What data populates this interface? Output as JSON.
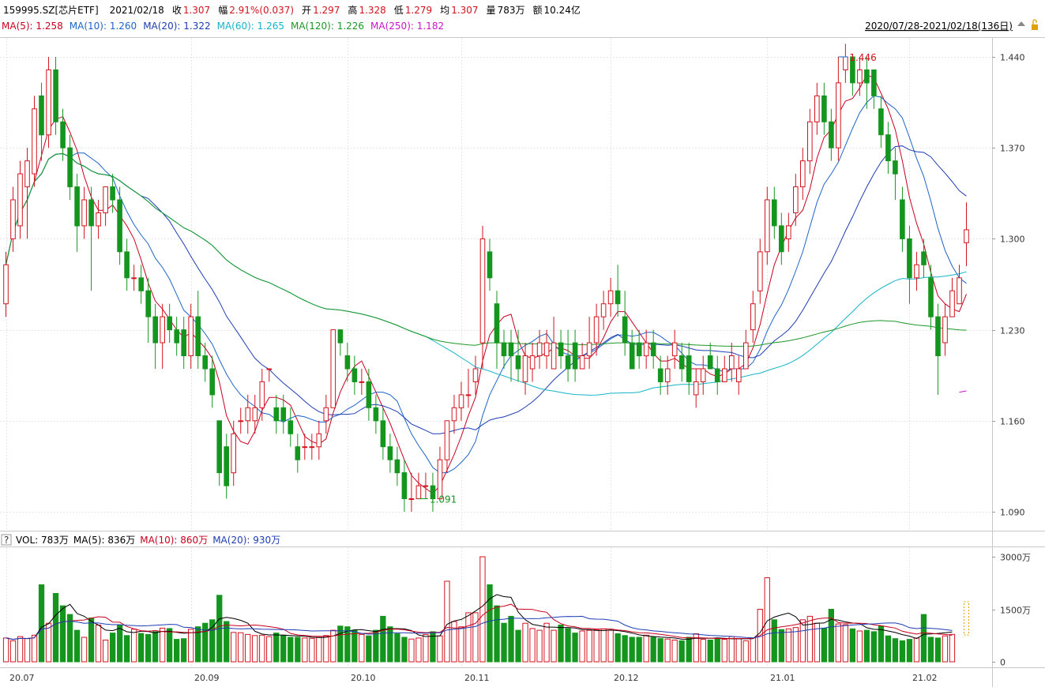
{
  "header": {
    "code": "159995.SZ[芯片ETF]",
    "date": "2021/02/18",
    "close_label": "收",
    "close": "1.307",
    "change_label": "幅",
    "change": "2.91%(0.037)",
    "open_label": "开",
    "open": "1.297",
    "high_label": "高",
    "high": "1.328",
    "low_label": "低",
    "low": "1.279",
    "avg_label": "均",
    "avg": "1.307",
    "vol_label": "量",
    "vol": "783万",
    "amount_label": "额",
    "amount": "10.24亿",
    "range": "2020/07/28-2021/02/18(136日)"
  },
  "ma_legend": [
    {
      "text": "MA(5): 1.258",
      "color": "#c8001e"
    },
    {
      "text": "MA(10): 1.260",
      "color": "#1e64c8"
    },
    {
      "text": "MA(20): 1.322",
      "color": "#1e3cb4"
    },
    {
      "text": "MA(60): 1.265",
      "color": "#14b4c8"
    },
    {
      "text": "MA(120): 1.226",
      "color": "#1e9628"
    },
    {
      "text": "MA(250): 1.182",
      "color": "#c814c8"
    }
  ],
  "vol_legend": [
    {
      "text": "VOL: 783万",
      "color": "#000000"
    },
    {
      "text": "MA(5): 836万",
      "color": "#000000"
    },
    {
      "text": "MA(10): 860万",
      "color": "#c8001e"
    },
    {
      "text": "MA(20): 930万",
      "color": "#1e3cb4"
    }
  ],
  "vol_help_icon": "?",
  "colors": {
    "up": "#d2141e",
    "down": "#14961e"
  },
  "chart_data": {
    "type": "candlestick",
    "ylim": [
      1.08,
      1.455
    ],
    "y_ticks": [
      1.09,
      1.16,
      1.23,
      1.3,
      1.37,
      1.44
    ],
    "y_tick_labels": [
      "1.090",
      "1.160",
      "1.230",
      "1.300",
      "1.370",
      "1.440"
    ],
    "x_tick_labels": [
      {
        "label": "20.07",
        "idx": 0
      },
      {
        "label": "20.09",
        "idx": 26
      },
      {
        "label": "20.10",
        "idx": 48
      },
      {
        "label": "20.11",
        "idx": 64
      },
      {
        "label": "20.12",
        "idx": 85
      },
      {
        "label": "21.01",
        "idx": 107
      },
      {
        "label": "21.02",
        "idx": 127
      }
    ],
    "annotations": [
      {
        "text": "1.446",
        "type": "high",
        "idx": 117
      },
      {
        "text": "1.091",
        "type": "low",
        "idx": 58
      }
    ],
    "candles": [
      [
        1.25,
        1.28,
        1.24,
        1.29
      ],
      [
        1.3,
        1.33,
        1.29,
        1.34
      ],
      [
        1.31,
        1.35,
        1.3,
        1.36
      ],
      [
        1.34,
        1.36,
        1.3,
        1.37
      ],
      [
        1.35,
        1.4,
        1.34,
        1.41
      ],
      [
        1.41,
        1.38,
        1.36,
        1.42
      ],
      [
        1.38,
        1.43,
        1.37,
        1.44
      ],
      [
        1.43,
        1.39,
        1.38,
        1.44
      ],
      [
        1.39,
        1.37,
        1.36,
        1.4
      ],
      [
        1.37,
        1.34,
        1.33,
        1.38
      ],
      [
        1.34,
        1.31,
        1.29,
        1.35
      ],
      [
        1.31,
        1.33,
        1.3,
        1.34
      ],
      [
        1.33,
        1.31,
        1.26,
        1.34
      ],
      [
        1.31,
        1.32,
        1.3,
        1.33
      ],
      [
        1.32,
        1.34,
        1.31,
        1.34
      ],
      [
        1.34,
        1.33,
        1.32,
        1.35
      ],
      [
        1.33,
        1.29,
        1.28,
        1.34
      ],
      [
        1.29,
        1.27,
        1.26,
        1.3
      ],
      [
        1.27,
        1.27,
        1.26,
        1.28
      ],
      [
        1.27,
        1.26,
        1.25,
        1.28
      ],
      [
        1.26,
        1.24,
        1.22,
        1.27
      ],
      [
        1.24,
        1.22,
        1.2,
        1.25
      ],
      [
        1.22,
        1.24,
        1.2,
        1.25
      ],
      [
        1.24,
        1.23,
        1.22,
        1.25
      ],
      [
        1.23,
        1.22,
        1.21,
        1.24
      ],
      [
        1.23,
        1.21,
        1.2,
        1.24
      ],
      [
        1.21,
        1.24,
        1.2,
        1.25
      ],
      [
        1.24,
        1.21,
        1.2,
        1.26
      ],
      [
        1.21,
        1.2,
        1.19,
        1.22
      ],
      [
        1.2,
        1.18,
        1.17,
        1.21
      ],
      [
        1.16,
        1.12,
        1.11,
        1.16
      ],
      [
        1.14,
        1.11,
        1.1,
        1.15
      ],
      [
        1.12,
        1.15,
        1.11,
        1.16
      ],
      [
        1.16,
        1.16,
        1.15,
        1.17
      ],
      [
        1.16,
        1.17,
        1.15,
        1.18
      ],
      [
        1.16,
        1.17,
        1.15,
        1.18
      ],
      [
        1.17,
        1.19,
        1.16,
        1.2
      ],
      [
        1.2,
        1.2,
        1.19,
        1.2
      ],
      [
        1.17,
        1.16,
        1.15,
        1.18
      ],
      [
        1.17,
        1.16,
        1.15,
        1.18
      ],
      [
        1.16,
        1.15,
        1.14,
        1.17
      ],
      [
        1.14,
        1.13,
        1.12,
        1.15
      ],
      [
        1.14,
        1.14,
        1.13,
        1.15
      ],
      [
        1.14,
        1.14,
        1.13,
        1.15
      ],
      [
        1.14,
        1.15,
        1.13,
        1.16
      ],
      [
        1.16,
        1.17,
        1.15,
        1.18
      ],
      [
        1.17,
        1.23,
        1.17,
        1.23
      ],
      [
        1.23,
        1.22,
        1.21,
        1.23
      ],
      [
        1.21,
        1.2,
        1.19,
        1.22
      ],
      [
        1.2,
        1.19,
        1.18,
        1.21
      ],
      [
        1.19,
        1.19,
        1.18,
        1.2
      ],
      [
        1.19,
        1.17,
        1.16,
        1.2
      ],
      [
        1.17,
        1.16,
        1.15,
        1.18
      ],
      [
        1.16,
        1.14,
        1.13,
        1.17
      ],
      [
        1.14,
        1.13,
        1.12,
        1.15
      ],
      [
        1.13,
        1.12,
        1.11,
        1.14
      ],
      [
        1.12,
        1.1,
        1.09,
        1.13
      ],
      [
        1.1,
        1.1,
        1.09,
        1.12
      ],
      [
        1.1,
        1.11,
        1.1,
        1.12
      ],
      [
        1.11,
        1.11,
        1.1,
        1.12
      ],
      [
        1.11,
        1.1,
        1.09,
        1.12
      ],
      [
        1.1,
        1.13,
        1.1,
        1.14
      ],
      [
        1.13,
        1.16,
        1.12,
        1.16
      ],
      [
        1.16,
        1.17,
        1.15,
        1.18
      ],
      [
        1.17,
        1.18,
        1.16,
        1.19
      ],
      [
        1.18,
        1.18,
        1.17,
        1.2
      ],
      [
        1.19,
        1.2,
        1.18,
        1.21
      ],
      [
        1.22,
        1.3,
        1.2,
        1.31
      ],
      [
        1.29,
        1.27,
        1.26,
        1.3
      ],
      [
        1.25,
        1.22,
        1.2,
        1.26
      ],
      [
        1.22,
        1.21,
        1.2,
        1.23
      ],
      [
        1.22,
        1.21,
        1.19,
        1.23
      ],
      [
        1.21,
        1.2,
        1.19,
        1.23
      ],
      [
        1.19,
        1.21,
        1.18,
        1.22
      ],
      [
        1.2,
        1.21,
        1.19,
        1.22
      ],
      [
        1.21,
        1.22,
        1.2,
        1.23
      ],
      [
        1.21,
        1.22,
        1.2,
        1.23
      ],
      [
        1.2,
        1.22,
        1.2,
        1.24
      ],
      [
        1.22,
        1.21,
        1.2,
        1.23
      ],
      [
        1.21,
        1.2,
        1.19,
        1.23
      ],
      [
        1.22,
        1.2,
        1.19,
        1.23
      ],
      [
        1.2,
        1.21,
        1.2,
        1.22
      ],
      [
        1.21,
        1.22,
        1.2,
        1.24
      ],
      [
        1.22,
        1.24,
        1.21,
        1.25
      ],
      [
        1.24,
        1.25,
        1.23,
        1.26
      ],
      [
        1.25,
        1.26,
        1.24,
        1.27
      ],
      [
        1.26,
        1.25,
        1.24,
        1.28
      ],
      [
        1.24,
        1.22,
        1.21,
        1.26
      ],
      [
        1.22,
        1.2,
        1.2,
        1.23
      ],
      [
        1.22,
        1.21,
        1.2,
        1.23
      ],
      [
        1.21,
        1.22,
        1.2,
        1.23
      ],
      [
        1.22,
        1.21,
        1.2,
        1.23
      ],
      [
        1.2,
        1.19,
        1.18,
        1.21
      ],
      [
        1.19,
        1.2,
        1.18,
        1.21
      ],
      [
        1.21,
        1.22,
        1.2,
        1.23
      ],
      [
        1.21,
        1.2,
        1.19,
        1.22
      ],
      [
        1.21,
        1.19,
        1.18,
        1.22
      ],
      [
        1.18,
        1.19,
        1.17,
        1.2
      ],
      [
        1.19,
        1.2,
        1.18,
        1.21
      ],
      [
        1.21,
        1.2,
        1.2,
        1.22
      ],
      [
        1.2,
        1.19,
        1.18,
        1.21
      ],
      [
        1.19,
        1.2,
        1.19,
        1.21
      ],
      [
        1.2,
        1.21,
        1.19,
        1.22
      ],
      [
        1.19,
        1.2,
        1.18,
        1.21
      ],
      [
        1.2,
        1.22,
        1.2,
        1.23
      ],
      [
        1.23,
        1.25,
        1.22,
        1.26
      ],
      [
        1.26,
        1.29,
        1.25,
        1.3
      ],
      [
        1.29,
        1.33,
        1.28,
        1.34
      ],
      [
        1.33,
        1.31,
        1.3,
        1.34
      ],
      [
        1.31,
        1.29,
        1.28,
        1.32
      ],
      [
        1.3,
        1.31,
        1.29,
        1.32
      ],
      [
        1.32,
        1.34,
        1.31,
        1.35
      ],
      [
        1.34,
        1.36,
        1.33,
        1.37
      ],
      [
        1.36,
        1.39,
        1.35,
        1.4
      ],
      [
        1.39,
        1.41,
        1.38,
        1.42
      ],
      [
        1.41,
        1.39,
        1.38,
        1.42
      ],
      [
        1.39,
        1.37,
        1.36,
        1.4
      ],
      [
        1.37,
        1.42,
        1.36,
        1.44
      ],
      [
        1.43,
        1.44,
        1.42,
        1.45
      ],
      [
        1.44,
        1.42,
        1.41,
        1.44
      ],
      [
        1.42,
        1.43,
        1.41,
        1.44
      ],
      [
        1.43,
        1.42,
        1.4,
        1.44
      ],
      [
        1.43,
        1.41,
        1.4,
        1.43
      ],
      [
        1.4,
        1.38,
        1.37,
        1.41
      ],
      [
        1.38,
        1.36,
        1.35,
        1.39
      ],
      [
        1.36,
        1.35,
        1.33,
        1.37
      ],
      [
        1.33,
        1.3,
        1.29,
        1.34
      ],
      [
        1.3,
        1.27,
        1.25,
        1.31
      ],
      [
        1.27,
        1.28,
        1.26,
        1.29
      ],
      [
        1.29,
        1.28,
        1.27,
        1.3
      ],
      [
        1.27,
        1.24,
        1.23,
        1.28
      ],
      [
        1.24,
        1.21,
        1.18,
        1.25
      ],
      [
        1.22,
        1.24,
        1.21,
        1.25
      ],
      [
        1.24,
        1.26,
        1.24,
        1.27
      ],
      [
        1.25,
        1.27,
        1.25,
        1.28
      ],
      [
        1.297,
        1.307,
        1.279,
        1.328
      ]
    ],
    "volumes": [
      680,
      600,
      720,
      660,
      760,
      2200,
      1100,
      1950,
      1600,
      1350,
      900,
      700,
      1250,
      1050,
      620,
      820,
      1050,
      750,
      930,
      810,
      780,
      860,
      960,
      950,
      640,
      660,
      930,
      1000,
      1100,
      1200,
      1900,
      1150,
      840,
      830,
      780,
      750,
      760,
      720,
      820,
      760,
      700,
      700,
      680,
      670,
      700,
      750,
      900,
      1020,
      1000,
      900,
      780,
      740,
      900,
      1300,
      1000,
      800,
      700,
      650,
      680,
      780,
      860,
      740,
      2300,
      1150,
      1000,
      1400,
      1400,
      3000,
      2200,
      1600,
      1100,
      1300,
      900,
      1100,
      950,
      900,
      1100,
      900,
      1050,
      950,
      820,
      880,
      900,
      920,
      940,
      900,
      800,
      750,
      700,
      700,
      760,
      700,
      660,
      650,
      620,
      600,
      700,
      800,
      640,
      620,
      660,
      640,
      720,
      660,
      600,
      680,
      1500,
      2400,
      1200,
      920,
      940,
      980,
      1200,
      1300,
      1100,
      960,
      1500,
      1080,
      1060,
      940,
      880,
      900,
      860,
      1020,
      740,
      660,
      600,
      640,
      680,
      1350,
      700,
      680,
      740,
      783
    ]
  }
}
